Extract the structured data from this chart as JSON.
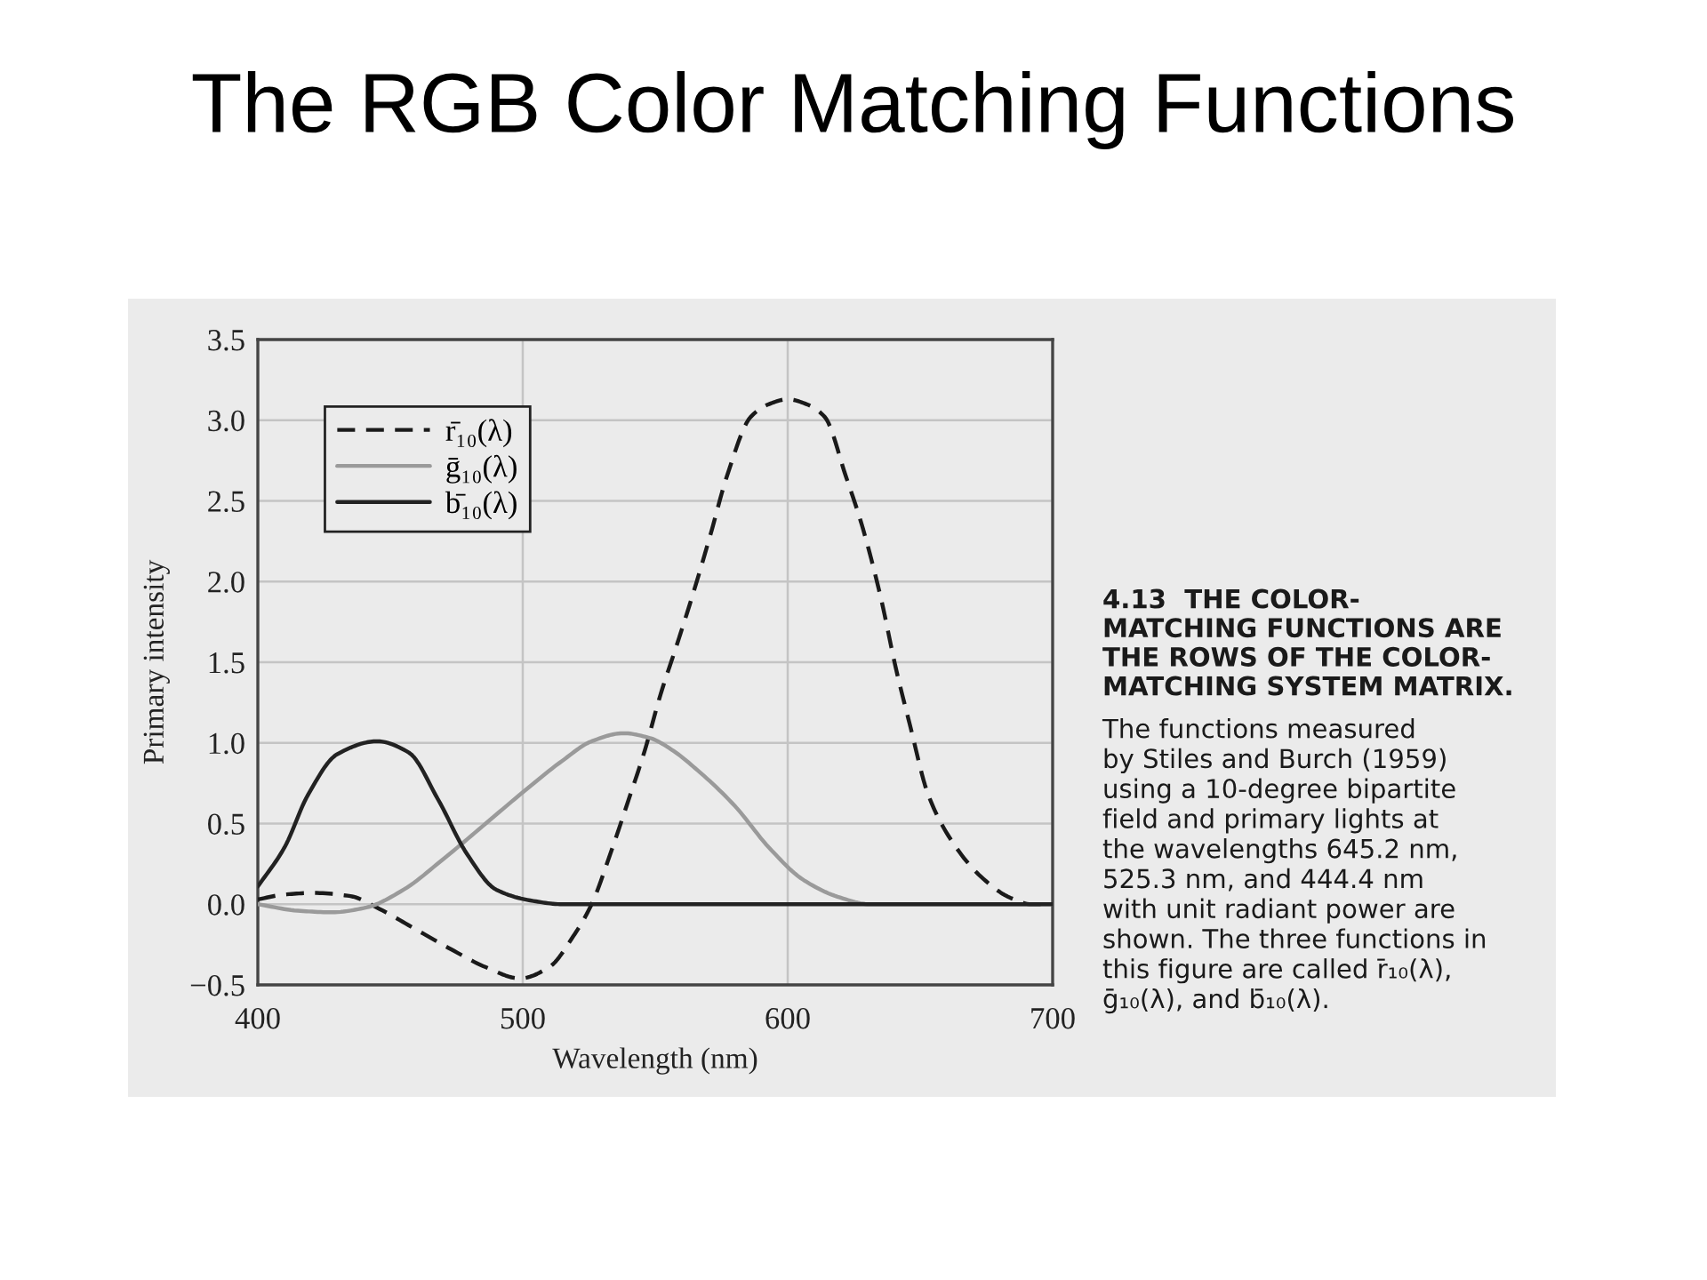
{
  "chart_data": {
    "type": "line",
    "title": "The RGB Color Matching Functions",
    "xlabel": "Wavelength (nm)",
    "ylabel": "Primary intensity",
    "xlim": [
      400,
      700
    ],
    "xticks": [
      400,
      500,
      600,
      700
    ],
    "ylim": [
      -0.5,
      3.5
    ],
    "yticks": [
      {
        "value": -0.5,
        "label": "−0.5"
      },
      {
        "value": 0,
        "label": "0.0"
      },
      0.5,
      {
        "value": 1,
        "label": "1.0"
      },
      1.5,
      {
        "value": 2,
        "label": "2.0"
      },
      2.5,
      {
        "value": 3,
        "label": "3.0"
      },
      3.5
    ],
    "grid": true,
    "legend": "top left",
    "series": [
      {
        "name": "r̄₁₀(λ)",
        "color": "#1a1a1a",
        "line_style": "dashed",
        "x": [
          400,
          410,
          421,
          435,
          446,
          459,
          473,
          486,
          499,
          510,
          519,
          526,
          533,
          540,
          546,
          552,
          558,
          564,
          571,
          577,
          586,
          593,
          600,
          607,
          614,
          622,
          628,
          635,
          641,
          646,
          653,
          662,
          673,
          684,
          692,
          700
        ],
        "values": [
          0.03,
          0.06,
          0.07,
          0.05,
          -0.03,
          -0.15,
          -0.28,
          -0.39,
          -0.46,
          -0.39,
          -0.2,
          0.0,
          0.31,
          0.65,
          0.95,
          1.3,
          1.6,
          1.91,
          2.3,
          2.65,
          3.02,
          3.1,
          3.13,
          3.1,
          3.02,
          2.65,
          2.35,
          1.91,
          1.45,
          1.12,
          0.68,
          0.39,
          0.17,
          0.04,
          0.0,
          0.0
        ]
      },
      {
        "name": "ḡ₁₀(λ)",
        "color": "#9a9a9a",
        "line_style": "solid",
        "x": [
          400,
          415,
          428,
          441,
          455,
          470,
          486,
          499,
          515,
          526,
          538,
          548,
          556,
          566,
          580,
          593,
          606,
          620,
          631,
          700
        ],
        "values": [
          0.0,
          -0.04,
          -0.05,
          -0.02,
          0.09,
          0.28,
          0.5,
          0.68,
          0.89,
          1.01,
          1.06,
          1.03,
          0.96,
          0.83,
          0.61,
          0.35,
          0.15,
          0.04,
          0.0,
          0.0
        ]
      },
      {
        "name": "b̄₁₀(λ)",
        "color": "#222222",
        "line_style": "solid",
        "x": [
          400,
          410,
          419,
          430,
          445,
          457,
          468,
          479,
          490,
          504,
          515,
          700
        ],
        "values": [
          0.11,
          0.35,
          0.68,
          0.93,
          1.01,
          0.94,
          0.65,
          0.31,
          0.09,
          0.02,
          0.0,
          0.0
        ]
      }
    ],
    "annotations": [
      "4.13  THE COLOR-\nMATCHING FUNCTIONS ARE\nTHE ROWS OF THE COLOR-\nMATCHING SYSTEM MATRIX.",
      "The functions measured\nby Stiles and Burch (1959)\nusing a 10-degree bipartite\nfield and primary lights at\nthe wavelengths 645.2 nm,\n525.3 nm, and 444.4 nm\nwith unit radiant power are\nshown. The three functions in\nthis figure are called r̄₁₀(λ),\nḡ₁₀(λ), and b̄₁₀(λ)."
    ]
  }
}
